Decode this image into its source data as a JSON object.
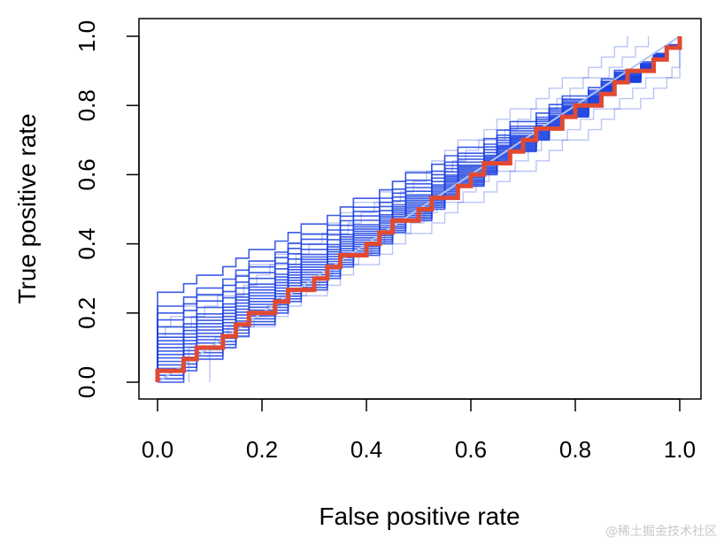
{
  "chart_data": {
    "type": "line",
    "title": "",
    "xlabel": "False positive rate",
    "ylabel": "True positive rate",
    "xlim": [
      0.0,
      1.0
    ],
    "ylim": [
      0.0,
      1.0
    ],
    "xticks": [
      "0.0",
      "0.2",
      "0.4",
      "0.6",
      "0.8",
      "1.0"
    ],
    "yticks": [
      "0.0",
      "0.2",
      "0.4",
      "0.6",
      "0.8",
      "1.0"
    ],
    "grid": false,
    "legend": "none",
    "reference_line": {
      "x": [
        0,
        1
      ],
      "y": [
        0,
        1
      ],
      "color": "#b0c4ee"
    },
    "sample_curves": {
      "count": 20,
      "color": "#1a3fe0",
      "step_x": [
        0.0,
        0.05,
        0.075,
        0.125,
        0.15,
        0.175,
        0.225,
        0.25,
        0.275,
        0.325,
        0.35,
        0.375,
        0.425,
        0.45,
        0.475,
        0.525,
        0.55,
        0.575,
        0.625,
        0.65,
        0.675,
        0.725,
        0.75,
        0.775,
        0.825,
        0.85,
        0.875,
        0.925,
        0.95,
        0.975,
        1.0
      ],
      "start_levels": [
        0.0,
        0.01,
        0.02,
        0.03,
        0.04,
        0.05,
        0.06,
        0.07,
        0.08,
        0.09,
        0.1,
        0.11,
        0.12,
        0.13,
        0.14,
        0.16,
        0.18,
        0.2,
        0.22,
        0.26
      ]
    },
    "series": [
      {
        "color": "#e04a33",
        "x": [
          0.0,
          0.0,
          0.05,
          0.05,
          0.075,
          0.075,
          0.125,
          0.125,
          0.15,
          0.15,
          0.175,
          0.175,
          0.225,
          0.225,
          0.25,
          0.25,
          0.3,
          0.3,
          0.325,
          0.325,
          0.35,
          0.35,
          0.4,
          0.4,
          0.425,
          0.425,
          0.45,
          0.45,
          0.5,
          0.5,
          0.525,
          0.525,
          0.575,
          0.575,
          0.6,
          0.6,
          0.625,
          0.625,
          0.675,
          0.675,
          0.7,
          0.7,
          0.725,
          0.725,
          0.775,
          0.775,
          0.8,
          0.8,
          0.85,
          0.85,
          0.875,
          0.875,
          0.9,
          0.9,
          0.95,
          0.95,
          0.975,
          0.975,
          1.0,
          1.0
        ],
        "y": [
          0.0,
          0.033,
          0.033,
          0.067,
          0.067,
          0.1,
          0.1,
          0.133,
          0.133,
          0.167,
          0.167,
          0.2,
          0.2,
          0.233,
          0.233,
          0.267,
          0.267,
          0.3,
          0.3,
          0.333,
          0.333,
          0.367,
          0.367,
          0.4,
          0.4,
          0.433,
          0.433,
          0.467,
          0.467,
          0.5,
          0.5,
          0.533,
          0.533,
          0.567,
          0.567,
          0.6,
          0.6,
          0.633,
          0.633,
          0.667,
          0.667,
          0.7,
          0.7,
          0.733,
          0.733,
          0.767,
          0.767,
          0.8,
          0.8,
          0.833,
          0.833,
          0.867,
          0.867,
          0.9,
          0.9,
          0.933,
          0.933,
          0.967,
          0.967,
          1.0
        ]
      }
    ]
  },
  "watermark": "@稀土掘金技术社区"
}
